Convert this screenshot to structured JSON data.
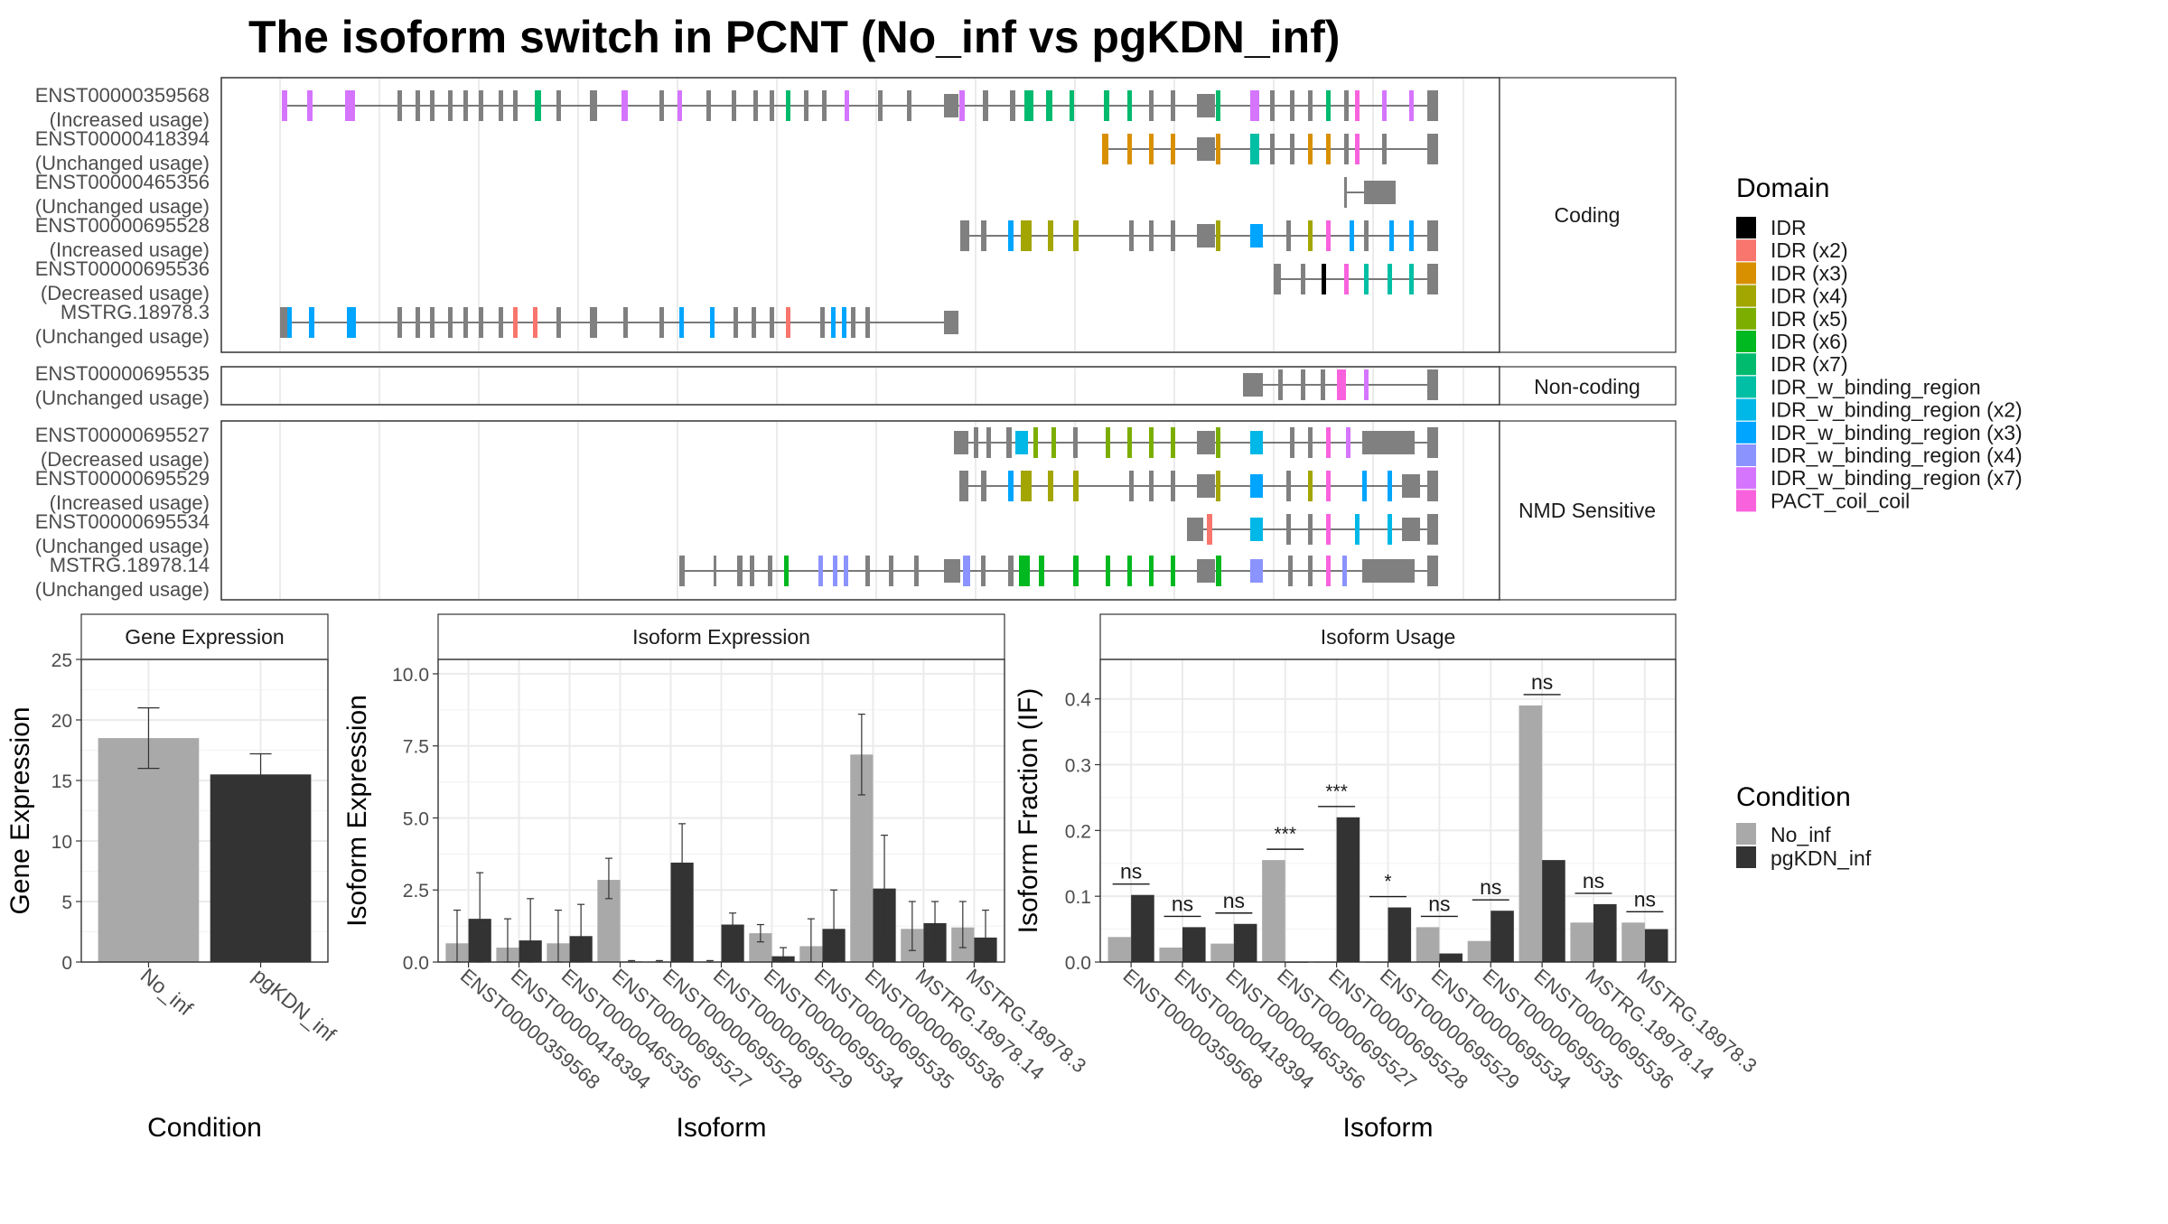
{
  "title": "The isoform switch in PCNT (No_inf vs pgKDN_inf)",
  "legends": {
    "domain": {
      "title": "Domain",
      "items": [
        {
          "label": "IDR",
          "color": "#000000"
        },
        {
          "label": "IDR (x2)",
          "color": "#F8766D"
        },
        {
          "label": "IDR (x3)",
          "color": "#D89000"
        },
        {
          "label": "IDR (x4)",
          "color": "#A3A500"
        },
        {
          "label": "IDR (x5)",
          "color": "#7CAE00"
        },
        {
          "label": "IDR (x6)",
          "color": "#00B81F"
        },
        {
          "label": "IDR (x7)",
          "color": "#00BA6E"
        },
        {
          "label": "IDR_w_binding_region",
          "color": "#00BFA5"
        },
        {
          "label": "IDR_w_binding_region (x2)",
          "color": "#00B8E7"
        },
        {
          "label": "IDR_w_binding_region (x3)",
          "color": "#00A5FF"
        },
        {
          "label": "IDR_w_binding_region (x4)",
          "color": "#8B93FF"
        },
        {
          "label": "IDR_w_binding_region (x7)",
          "color": "#D575FE"
        },
        {
          "label": "PACT_coil_coil",
          "color": "#F962DD"
        }
      ]
    },
    "condition": {
      "title": "Condition",
      "items": [
        {
          "label": "No_inf",
          "color": "#A9A9A9"
        },
        {
          "label": "pgKDN_inf",
          "color": "#333333"
        }
      ]
    }
  },
  "transcript_panels": [
    {
      "strip": "Coding",
      "transcripts": [
        {
          "name": "ENST00000359568",
          "usage": "(Increased usage)"
        },
        {
          "name": "ENST00000418394",
          "usage": "(Unchanged usage)"
        },
        {
          "name": "ENST00000465356",
          "usage": "(Unchanged usage)"
        },
        {
          "name": "ENST00000695528",
          "usage": "(Increased usage)"
        },
        {
          "name": "ENST00000695536",
          "usage": "(Decreased usage)"
        },
        {
          "name": "MSTRG.18978.3",
          "usage": "(Unchanged usage)"
        }
      ]
    },
    {
      "strip": "Non-coding",
      "transcripts": [
        {
          "name": "ENST00000695535",
          "usage": "(Unchanged usage)"
        }
      ]
    },
    {
      "strip": "NMD Sensitive",
      "transcripts": [
        {
          "name": "ENST00000695527",
          "usage": "(Decreased usage)"
        },
        {
          "name": "ENST00000695529",
          "usage": "(Increased usage)"
        },
        {
          "name": "ENST00000695534",
          "usage": "(Unchanged usage)"
        },
        {
          "name": "MSTRG.18978.14",
          "usage": "(Unchanged usage)"
        }
      ]
    }
  ],
  "chart_data": [
    {
      "type": "bar",
      "title": "Gene Expression",
      "xlabel": "Condition",
      "ylabel": "Gene Expression",
      "ylim": [
        0,
        25
      ],
      "yticks": [
        0,
        5,
        10,
        15,
        20,
        25
      ],
      "categories": [
        "No_inf",
        "pgKDN_inf"
      ],
      "values": [
        18.5,
        15.5
      ],
      "error_low": [
        16.0,
        13.8
      ],
      "error_high": [
        21.0,
        17.2
      ]
    },
    {
      "type": "bar",
      "title": "Isoform Expression",
      "xlabel": "Isoform",
      "ylabel": "Isoform Expression",
      "ylim": [
        0,
        10.5
      ],
      "yticks": [
        0.0,
        2.5,
        5.0,
        7.5,
        10.0
      ],
      "categories": [
        "ENST00000359568",
        "ENST00000418394",
        "ENST00000465356",
        "ENST00000695527",
        "ENST00000695528",
        "ENST00000695529",
        "ENST00000695534",
        "ENST00000695535",
        "ENST00000695536",
        "MSTRG.18978.14",
        "MSTRG.18978.3"
      ],
      "series": [
        {
          "name": "No_inf",
          "values": [
            0.65,
            0.5,
            0.65,
            2.85,
            0.02,
            0.02,
            1.0,
            0.55,
            7.2,
            1.15,
            1.2
          ],
          "error_low": [
            0.0,
            0.0,
            0.0,
            2.2,
            0.0,
            0.0,
            0.7,
            0.0,
            5.8,
            0.4,
            0.5
          ],
          "error_high": [
            1.8,
            1.5,
            1.8,
            3.6,
            0.05,
            0.05,
            1.3,
            1.5,
            8.6,
            2.1,
            2.1
          ]
        },
        {
          "name": "pgKDN_inf",
          "values": [
            1.5,
            0.75,
            0.9,
            0.02,
            3.45,
            1.3,
            0.2,
            1.15,
            2.55,
            1.35,
            0.85
          ],
          "error_low": [
            0.0,
            0.0,
            0.0,
            0.0,
            2.1,
            1.0,
            0.0,
            0.0,
            0.7,
            0.6,
            0.0
          ],
          "error_high": [
            3.1,
            2.2,
            2.0,
            0.05,
            4.8,
            1.7,
            0.5,
            2.5,
            4.4,
            2.1,
            1.8
          ]
        }
      ]
    },
    {
      "type": "bar",
      "title": "Isoform Usage",
      "xlabel": "Isoform",
      "ylabel": "Isoform Fraction (IF)",
      "ylim": [
        0,
        0.46
      ],
      "yticks": [
        0.0,
        0.1,
        0.2,
        0.3,
        0.4
      ],
      "categories": [
        "ENST00000359568",
        "ENST00000418394",
        "ENST00000465356",
        "ENST00000695527",
        "ENST00000695528",
        "ENST00000695529",
        "ENST00000695534",
        "ENST00000695535",
        "ENST00000695536",
        "MSTRG.18978.14",
        "MSTRG.18978.3"
      ],
      "series": [
        {
          "name": "No_inf",
          "values": [
            0.038,
            0.022,
            0.028,
            0.155,
            0.0,
            0.0,
            0.053,
            0.032,
            0.39,
            0.06,
            0.06
          ]
        },
        {
          "name": "pgKDN_inf",
          "values": [
            0.102,
            0.053,
            0.058,
            0.0,
            0.22,
            0.083,
            0.013,
            0.078,
            0.155,
            0.088,
            0.05
          ]
        }
      ],
      "significance": [
        "ns",
        "ns",
        "ns",
        "***",
        "***",
        "*",
        "ns",
        "ns",
        "ns",
        "ns",
        "ns"
      ]
    }
  ]
}
